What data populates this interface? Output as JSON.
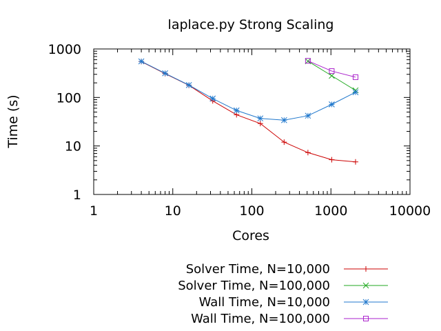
{
  "chart_data": {
    "type": "line",
    "title": "laplace.py Strong Scaling",
    "xlabel": "Cores",
    "ylabel": "Time (s)",
    "x_scale": "log",
    "y_scale": "log",
    "xlim": [
      1,
      10000
    ],
    "ylim": [
      1,
      1000
    ],
    "x_ticks": [
      {
        "value": 1,
        "label": "1"
      },
      {
        "value": 10,
        "label": "10"
      },
      {
        "value": 100,
        "label": "100"
      },
      {
        "value": 1000,
        "label": "1000"
      },
      {
        "value": 10000,
        "label": "10000"
      }
    ],
    "y_ticks": [
      {
        "value": 1,
        "label": "1"
      },
      {
        "value": 10,
        "label": "10"
      },
      {
        "value": 100,
        "label": "100"
      },
      {
        "value": 1000,
        "label": "1000"
      }
    ],
    "grid": false,
    "legend_position": "below",
    "series": [
      {
        "name": "Solver Time, N=10,000",
        "color": "#cc0000",
        "marker": "plus",
        "x": [
          4,
          8,
          16,
          32,
          64,
          128,
          256,
          512,
          1024,
          2048
        ],
        "y": [
          550,
          310,
          178,
          85,
          44,
          29,
          12,
          7.3,
          5.2,
          4.7
        ]
      },
      {
        "name": "Solver Time, N=100,000",
        "color": "#22aa22",
        "marker": "cross",
        "x": [
          512,
          1024,
          2048
        ],
        "y": [
          560,
          280,
          140
        ]
      },
      {
        "name": "Wall Time, N=10,000",
        "color": "#1f77cc",
        "marker": "star",
        "x": [
          4,
          8,
          16,
          32,
          64,
          128,
          256,
          512,
          1024,
          2048
        ],
        "y": [
          555,
          315,
          180,
          95,
          54,
          37,
          34,
          42,
          72,
          128
        ]
      },
      {
        "name": "Wall Time, N=100,000",
        "color": "#aa22cc",
        "marker": "square",
        "x": [
          512,
          1024,
          2048
        ],
        "y": [
          570,
          350,
          262
        ]
      }
    ]
  }
}
